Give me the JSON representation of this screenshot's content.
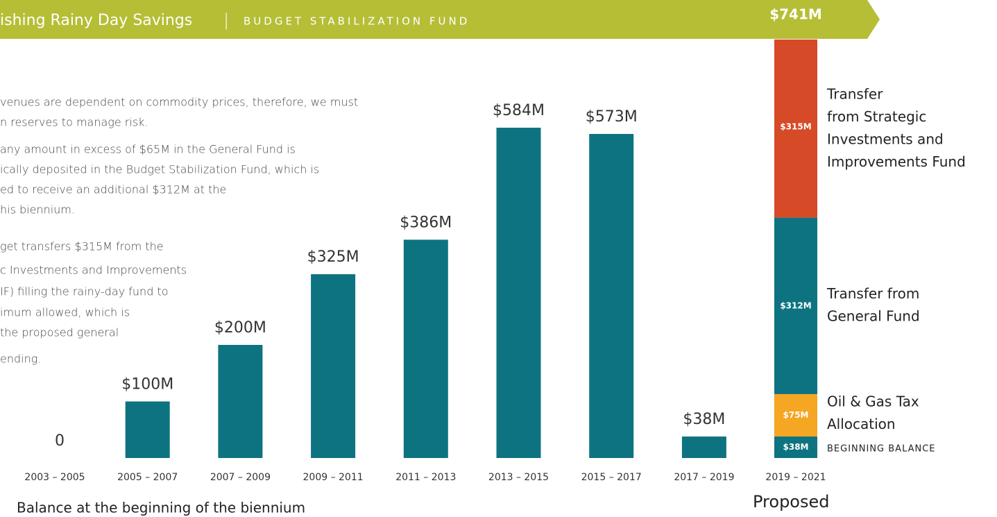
{
  "chart_data": {
    "type": "bar",
    "title": "ishing Rainy Day Savings",
    "subtitle": "BUDGET STABILIZATION FUND",
    "separator": "|",
    "color": "#0e7380",
    "categories": [
      "2003 – 2005",
      "2005 – 2007",
      "2007 – 2009",
      "2009 – 2011",
      "2011 – 2013",
      "2013 – 2015",
      "2015 – 2017",
      "2017 – 2019"
    ],
    "values": [
      0,
      100,
      200,
      325,
      386,
      584,
      573,
      38
    ],
    "value_labels": [
      "0",
      "$100M",
      "$200M",
      "$325M",
      "$386M",
      "$584M",
      "$573M",
      "$38M"
    ],
    "x_label": "Balance at the beginning of the biennium",
    "proposed": {
      "type": "stacked_bar",
      "category": "2019 – 2021",
      "label": "Proposed",
      "total": 741,
      "total_label": "$741M",
      "segments": [
        {
          "name_lines": [
            "BEGINNING BALANCE"
          ],
          "value": 38,
          "value_label": "$38M",
          "color": "#0e7380"
        },
        {
          "name_lines": [
            "Oil & Gas Tax",
            "Allocation"
          ],
          "value": 75,
          "value_label": "$75M",
          "color": "#f5a623"
        },
        {
          "name_lines": [
            "Transfer from",
            "General Fund"
          ],
          "value": 312,
          "value_label": "$312M",
          "color": "#0e7380"
        },
        {
          "name_lines": [
            "Transfer",
            "from Strategic",
            "Investments and",
            "Improvements Fund"
          ],
          "value": 315,
          "value_label": "$315M",
          "color": "#d64a27"
        }
      ]
    },
    "notes": [
      [
        "venues are dependent on commodity prices, therefore, we must",
        "n reserves to manage risk."
      ],
      [
        "any amount in excess of $65M in the General Fund is",
        "ically deposited in the Budget Stabilization Fund, which is",
        "ed to receive an additional $312M at the",
        "his biennium."
      ],
      [
        "get transfers $315M from the",
        "c Investments and Improvements",
        "IF) filling the rainy-day fund to",
        "imum allowed, which is",
        "the proposed general",
        "ending."
      ]
    ]
  }
}
